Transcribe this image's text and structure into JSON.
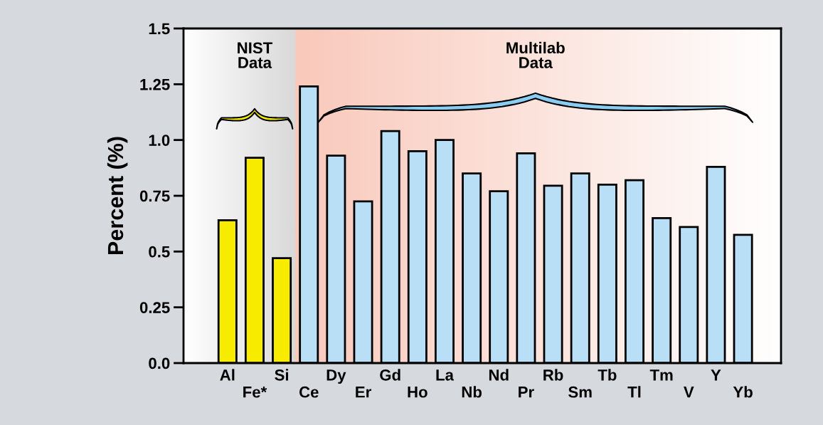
{
  "chart_data": {
    "type": "bar",
    "ylabel": "Percent (%)",
    "categories": [
      "Al",
      "Fe*",
      "Si",
      "Ce",
      "Dy",
      "Er",
      "Gd",
      "Ho",
      "La",
      "Nb",
      "Nd",
      "Pr",
      "Rb",
      "Sm",
      "Tb",
      "Tl",
      "Tm",
      "V",
      "Y",
      "Yb"
    ],
    "values": [
      0.64,
      0.92,
      0.47,
      1.24,
      0.93,
      0.725,
      1.04,
      0.95,
      1.0,
      0.85,
      0.77,
      0.94,
      0.795,
      0.85,
      0.8,
      0.82,
      0.65,
      0.61,
      0.88,
      0.575
    ],
    "colors": [
      "#f7ec00",
      "#f7ec00",
      "#f7ec00",
      "#b8dff5",
      "#b8dff5",
      "#b8dff5",
      "#b8dff5",
      "#b8dff5",
      "#b8dff5",
      "#b8dff5",
      "#b8dff5",
      "#b8dff5",
      "#b8dff5",
      "#b8dff5",
      "#b8dff5",
      "#b8dff5",
      "#b8dff5",
      "#b8dff5",
      "#b8dff5",
      "#b8dff5"
    ],
    "ylim": [
      0,
      1.5
    ],
    "yticks": [
      {
        "value": 0,
        "label": "0.0"
      },
      0.25,
      {
        "value": 0.5,
        "label": "0.5"
      },
      0.75,
      {
        "value": 1.0,
        "label": "1.0"
      },
      1.25,
      1.5
    ],
    "annotations": [
      "NIST\nData",
      "Multilab\nData"
    ],
    "grid": false,
    "legend": false
  }
}
